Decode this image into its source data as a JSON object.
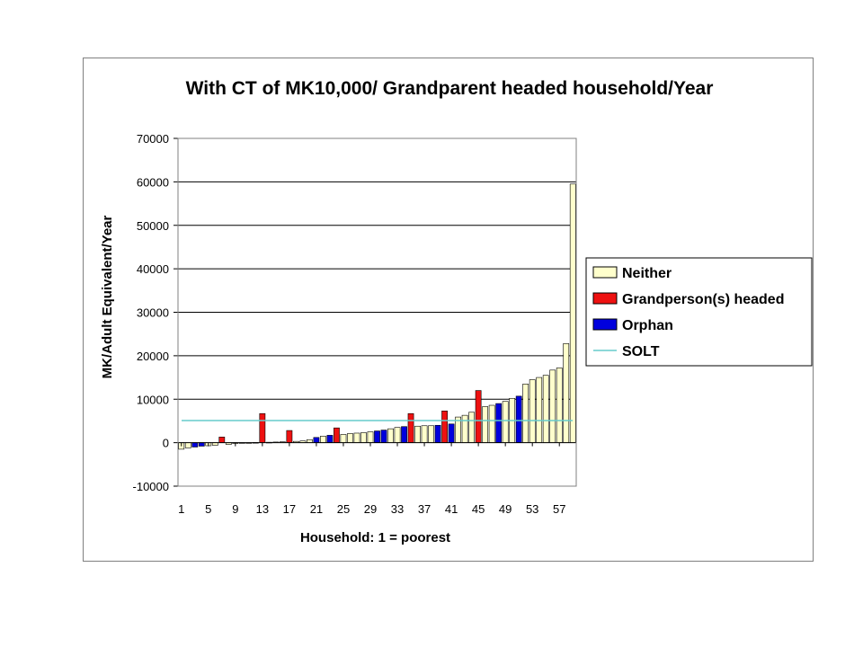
{
  "chart_data": {
    "type": "bar",
    "title": "With CT of MK10,000/ Grandparent headed household/Year",
    "xlabel": "Household: 1 = poorest",
    "ylabel": "MK/Adult Equivalent/Year",
    "ylim": [
      -10000,
      70000
    ],
    "yticks": [
      -10000,
      0,
      10000,
      20000,
      30000,
      40000,
      50000,
      60000,
      70000
    ],
    "xtick_labels": [
      "1",
      "5",
      "9",
      "13",
      "17",
      "21",
      "25",
      "29",
      "33",
      "37",
      "41",
      "45",
      "49",
      "53",
      "57"
    ],
    "grid": "horizontal",
    "legend_position": "right",
    "reference_line": {
      "name": "SOLT",
      "value": 5100,
      "color": "#66cccc"
    },
    "series_colors": {
      "Neither": "#ffffcc",
      "Grandperson(s) headed": "#ee1111",
      "Orphan": "#0000dd"
    },
    "legend": [
      "Neither",
      "Grandperson(s) headed",
      "Orphan",
      "SOLT"
    ],
    "bars": [
      {
        "x": 1,
        "value": -1500,
        "category": "Neither"
      },
      {
        "x": 2,
        "value": -1200,
        "category": "Neither"
      },
      {
        "x": 3,
        "value": -1000,
        "category": "Orphan"
      },
      {
        "x": 4,
        "value": -800,
        "category": "Orphan"
      },
      {
        "x": 5,
        "value": -700,
        "category": "Neither"
      },
      {
        "x": 6,
        "value": -600,
        "category": "Neither"
      },
      {
        "x": 7,
        "value": 1300,
        "category": "Grandperson(s) headed"
      },
      {
        "x": 8,
        "value": -400,
        "category": "Neither"
      },
      {
        "x": 9,
        "value": -200,
        "category": "Neither"
      },
      {
        "x": 10,
        "value": -100,
        "category": "Neither"
      },
      {
        "x": 11,
        "value": 0,
        "category": "Neither"
      },
      {
        "x": 12,
        "value": 50,
        "category": "Neither"
      },
      {
        "x": 13,
        "value": 6700,
        "category": "Grandperson(s) headed"
      },
      {
        "x": 14,
        "value": 100,
        "category": "Neither"
      },
      {
        "x": 15,
        "value": 150,
        "category": "Neither"
      },
      {
        "x": 16,
        "value": 200,
        "category": "Neither"
      },
      {
        "x": 17,
        "value": 2800,
        "category": "Grandperson(s) headed"
      },
      {
        "x": 18,
        "value": 300,
        "category": "Neither"
      },
      {
        "x": 19,
        "value": 400,
        "category": "Neither"
      },
      {
        "x": 20,
        "value": 700,
        "category": "Neither"
      },
      {
        "x": 21,
        "value": 1200,
        "category": "Orphan"
      },
      {
        "x": 22,
        "value": 1500,
        "category": "Neither"
      },
      {
        "x": 23,
        "value": 1700,
        "category": "Orphan"
      },
      {
        "x": 24,
        "value": 3400,
        "category": "Grandperson(s) headed"
      },
      {
        "x": 25,
        "value": 1900,
        "category": "Neither"
      },
      {
        "x": 26,
        "value": 2100,
        "category": "Neither"
      },
      {
        "x": 27,
        "value": 2200,
        "category": "Neither"
      },
      {
        "x": 28,
        "value": 2300,
        "category": "Neither"
      },
      {
        "x": 29,
        "value": 2500,
        "category": "Neither"
      },
      {
        "x": 30,
        "value": 2700,
        "category": "Orphan"
      },
      {
        "x": 31,
        "value": 2900,
        "category": "Orphan"
      },
      {
        "x": 32,
        "value": 3200,
        "category": "Neither"
      },
      {
        "x": 33,
        "value": 3500,
        "category": "Neither"
      },
      {
        "x": 34,
        "value": 3700,
        "category": "Orphan"
      },
      {
        "x": 35,
        "value": 6700,
        "category": "Grandperson(s) headed"
      },
      {
        "x": 36,
        "value": 3800,
        "category": "Neither"
      },
      {
        "x": 37,
        "value": 3900,
        "category": "Neither"
      },
      {
        "x": 38,
        "value": 3900,
        "category": "Neither"
      },
      {
        "x": 39,
        "value": 4000,
        "category": "Orphan"
      },
      {
        "x": 40,
        "value": 7300,
        "category": "Grandperson(s) headed"
      },
      {
        "x": 41,
        "value": 4300,
        "category": "Orphan"
      },
      {
        "x": 42,
        "value": 5900,
        "category": "Neither"
      },
      {
        "x": 43,
        "value": 6300,
        "category": "Neither"
      },
      {
        "x": 44,
        "value": 7000,
        "category": "Neither"
      },
      {
        "x": 45,
        "value": 12000,
        "category": "Grandperson(s) headed"
      },
      {
        "x": 46,
        "value": 8300,
        "category": "Neither"
      },
      {
        "x": 47,
        "value": 8600,
        "category": "Neither"
      },
      {
        "x": 48,
        "value": 9000,
        "category": "Orphan"
      },
      {
        "x": 49,
        "value": 9500,
        "category": "Neither"
      },
      {
        "x": 50,
        "value": 10200,
        "category": "Neither"
      },
      {
        "x": 51,
        "value": 10700,
        "category": "Orphan"
      },
      {
        "x": 52,
        "value": 13500,
        "category": "Neither"
      },
      {
        "x": 53,
        "value": 14500,
        "category": "Neither"
      },
      {
        "x": 54,
        "value": 15000,
        "category": "Neither"
      },
      {
        "x": 55,
        "value": 15500,
        "category": "Neither"
      },
      {
        "x": 56,
        "value": 16700,
        "category": "Neither"
      },
      {
        "x": 57,
        "value": 17200,
        "category": "Neither"
      },
      {
        "x": 58,
        "value": 22800,
        "category": "Neither"
      },
      {
        "x": 59,
        "value": 59500,
        "category": "Neither"
      }
    ]
  }
}
